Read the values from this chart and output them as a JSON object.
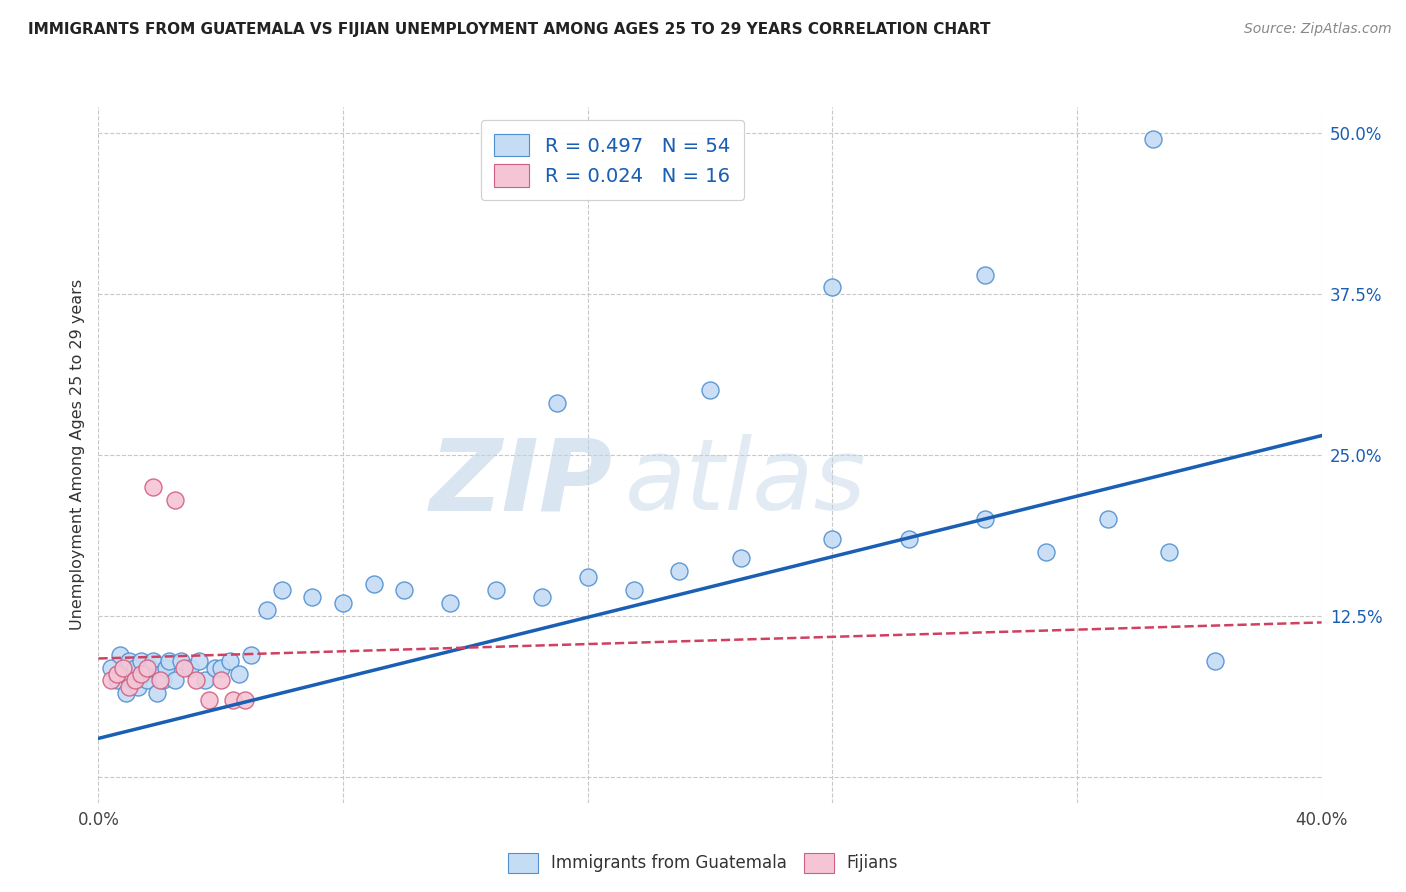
{
  "title": "IMMIGRANTS FROM GUATEMALA VS FIJIAN UNEMPLOYMENT AMONG AGES 25 TO 29 YEARS CORRELATION CHART",
  "source": "Source: ZipAtlas.com",
  "ylabel": "Unemployment Among Ages 25 to 29 years",
  "xlim": [
    0.0,
    0.4
  ],
  "ylim": [
    -0.02,
    0.52
  ],
  "xticks": [
    0.0,
    0.08,
    0.16,
    0.24,
    0.32,
    0.4
  ],
  "yticks": [
    0.0,
    0.125,
    0.25,
    0.375,
    0.5
  ],
  "xticklabels_show": [
    "0.0%",
    "40.0%"
  ],
  "yticklabels": [
    "",
    "12.5%",
    "25.0%",
    "37.5%",
    "50.0%"
  ],
  "legend_blue_label": "R = 0.497   N = 54",
  "legend_pink_label": "R = 0.024   N = 16",
  "legend_bottom_blue": "Immigrants from Guatemala",
  "legend_bottom_pink": "Fijians",
  "blue_fill_color": "#c5dcf5",
  "pink_fill_color": "#f5c5d5",
  "blue_edge_color": "#5090d0",
  "pink_edge_color": "#d06080",
  "blue_line_color": "#1a5fb4",
  "pink_line_color": "#d04060",
  "watermark_zip": "ZIP",
  "watermark_atlas": "atlas",
  "blue_scatter_x": [
    0.004,
    0.006,
    0.007,
    0.008,
    0.009,
    0.01,
    0.011,
    0.012,
    0.013,
    0.014,
    0.015,
    0.016,
    0.017,
    0.018,
    0.019,
    0.02,
    0.021,
    0.022,
    0.023,
    0.025,
    0.027,
    0.03,
    0.033,
    0.035,
    0.038,
    0.04,
    0.043,
    0.046,
    0.05,
    0.055,
    0.06,
    0.07,
    0.08,
    0.09,
    0.1,
    0.115,
    0.13,
    0.145,
    0.16,
    0.175,
    0.19,
    0.21,
    0.24,
    0.265,
    0.29,
    0.31,
    0.33,
    0.35,
    0.365,
    0.15,
    0.2,
    0.24,
    0.29,
    0.345
  ],
  "blue_scatter_y": [
    0.085,
    0.075,
    0.095,
    0.08,
    0.065,
    0.09,
    0.075,
    0.085,
    0.07,
    0.09,
    0.08,
    0.075,
    0.085,
    0.09,
    0.065,
    0.08,
    0.075,
    0.085,
    0.09,
    0.075,
    0.09,
    0.085,
    0.09,
    0.075,
    0.085,
    0.085,
    0.09,
    0.08,
    0.095,
    0.13,
    0.145,
    0.14,
    0.135,
    0.15,
    0.145,
    0.135,
    0.145,
    0.14,
    0.155,
    0.145,
    0.16,
    0.17,
    0.185,
    0.185,
    0.2,
    0.175,
    0.2,
    0.175,
    0.09,
    0.29,
    0.3,
    0.38,
    0.39,
    0.495
  ],
  "pink_scatter_x": [
    0.004,
    0.006,
    0.008,
    0.01,
    0.012,
    0.014,
    0.016,
    0.018,
    0.02,
    0.025,
    0.028,
    0.032,
    0.036,
    0.04,
    0.044,
    0.048
  ],
  "pink_scatter_y": [
    0.075,
    0.08,
    0.085,
    0.07,
    0.075,
    0.08,
    0.085,
    0.225,
    0.075,
    0.215,
    0.085,
    0.075,
    0.06,
    0.075,
    0.06,
    0.06
  ],
  "blue_line_x": [
    0.0,
    0.4
  ],
  "blue_line_y": [
    0.03,
    0.265
  ],
  "pink_line_x": [
    0.0,
    0.4
  ],
  "pink_line_y": [
    0.092,
    0.12
  ],
  "background_color": "#ffffff",
  "grid_color": "#c8c8c8"
}
